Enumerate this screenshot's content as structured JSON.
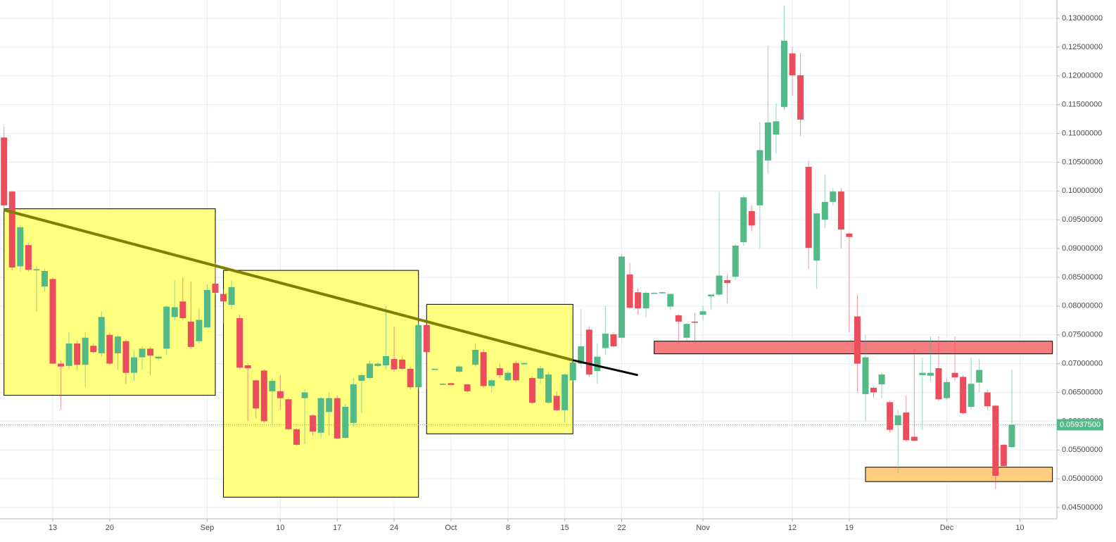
{
  "chart_data": {
    "type": "candlestick",
    "up_color": "#53b987",
    "down_color": "#eb4d5c",
    "x": [
      "Aug 7",
      "Aug 8",
      "Aug 9",
      "Aug 10",
      "Aug 11",
      "Aug 12",
      "Aug 13",
      "Aug 14",
      "Aug 15",
      "Aug 16",
      "Aug 17",
      "Aug 18",
      "Aug 19",
      "Aug 20",
      "Aug 21",
      "Aug 22",
      "Aug 23",
      "Aug 24",
      "Aug 25",
      "Aug 26",
      "Aug 27",
      "Aug 28",
      "Aug 29",
      "Aug 30",
      "Aug 31",
      "Sep 1",
      "Sep 2",
      "Sep 3",
      "Sep 4",
      "Sep 5",
      "Sep 6",
      "Sep 7",
      "Sep 8",
      "Sep 9",
      "Sep 10",
      "Sep 11",
      "Sep 12",
      "Sep 13",
      "Sep 14",
      "Sep 15",
      "Sep 16",
      "Sep 17",
      "Sep 18",
      "Sep 19",
      "Sep 20",
      "Sep 21",
      "Sep 22",
      "Sep 23",
      "Sep 24",
      "Sep 25",
      "Sep 26",
      "Sep 27",
      "Sep 28",
      "Sep 29",
      "Sep 30",
      "Oct 1",
      "Oct 2",
      "Oct 3",
      "Oct 4",
      "Oct 5",
      "Oct 6",
      "Oct 7",
      "Oct 8",
      "Oct 9",
      "Oct 10",
      "Oct 11",
      "Oct 12",
      "Oct 13",
      "Oct 14",
      "Oct 15",
      "Oct 16",
      "Oct 17",
      "Oct 18",
      "Oct 19",
      "Oct 20",
      "Oct 21",
      "Oct 22",
      "Oct 23",
      "Oct 24",
      "Oct 25",
      "Oct 26",
      "Oct 27",
      "Oct 28",
      "Oct 29",
      "Oct 30",
      "Oct 31",
      "Nov 1",
      "Nov 2",
      "Nov 3",
      "Nov 4",
      "Nov 5",
      "Nov 6",
      "Nov 7",
      "Nov 8",
      "Nov 9",
      "Nov 10",
      "Nov 11",
      "Nov 12",
      "Nov 13",
      "Nov 14",
      "Nov 15",
      "Nov 16",
      "Nov 17",
      "Nov 18",
      "Nov 19",
      "Nov 20",
      "Nov 21",
      "Nov 22",
      "Nov 23",
      "Nov 24",
      "Nov 25",
      "Nov 26",
      "Nov 27",
      "Nov 28",
      "Nov 29",
      "Nov 30",
      "Dec 1",
      "Dec 2",
      "Dec 3",
      "Dec 4",
      "Dec 5",
      "Dec 6",
      "Dec 7",
      "Dec 8",
      "Dec 9"
    ],
    "open": [
      0.1093,
      0.0999,
      0.0869,
      0.0906,
      0.0862,
      0.0834,
      0.0847,
      0.07,
      0.0696,
      0.0735,
      0.0698,
      0.0731,
      0.0718,
      0.075,
      0.0718,
      0.0739,
      0.0684,
      0.0711,
      0.0726,
      0.0709,
      0.0726,
      0.0781,
      0.0808,
      0.0773,
      0.0739,
      0.0763,
      0.0839,
      0.0821,
      0.0802,
      0.0779,
      0.0697,
      0.0671,
      0.0688,
      0.0652,
      0.0652,
      0.0638,
      0.0586,
      0.064,
      0.061,
      0.058,
      0.0616,
      0.064,
      0.0571,
      0.0597,
      0.067,
      0.0675,
      0.0696,
      0.0697,
      0.0708,
      0.0707,
      0.0691,
      0.0659,
      0.0767,
      0.069,
      0.0664,
      0.0666,
      0.0686,
      0.0664,
      0.0698,
      0.072,
      0.0661,
      0.0692,
      0.0671,
      0.0701,
      0.0699,
      0.0675,
      0.0674,
      0.0632,
      0.0644,
      0.0619,
      0.0671,
      0.07,
      0.0759,
      0.0687,
      0.0727,
      0.0751,
      0.0745,
      0.0855,
      0.0824,
      0.0796,
      0.0822,
      0.0823,
      0.0799,
      0.0784,
      0.0745,
      0.0773,
      0.0785,
      0.0817,
      0.082,
      0.0845,
      0.0851,
      0.0911,
      0.0965,
      0.0975,
      0.1053,
      0.1098,
      0.1146,
      0.1239,
      0.1201,
      0.1042,
      0.0879,
      0.095,
      0.0981,
      0.0999,
      0.0926,
      0.0782,
      0.0647,
      0.0658,
      0.0664,
      0.0633,
      0.0593,
      0.0615,
      0.0573,
      0.068,
      0.0679,
      0.0692,
      0.064,
      0.0684,
      0.0677,
      0.0625,
      0.0667,
      0.065,
      0.0627,
      0.0559,
      0.0555
    ],
    "high": [
      0.1112,
      0.1,
      0.094,
      0.091,
      0.087,
      0.0865,
      0.085,
      0.0705,
      0.0755,
      0.074,
      0.0755,
      0.0735,
      0.079,
      0.0755,
      0.075,
      0.0742,
      0.0722,
      0.073,
      0.073,
      0.0713,
      0.0801,
      0.0845,
      0.085,
      0.0843,
      0.0795,
      0.0838,
      0.0875,
      0.083,
      0.0845,
      0.0785,
      0.07,
      0.0672,
      0.069,
      0.0675,
      0.068,
      0.0641,
      0.0588,
      0.0655,
      0.0612,
      0.0642,
      0.065,
      0.0645,
      0.063,
      0.0675,
      0.0683,
      0.0705,
      0.0702,
      0.08,
      0.0765,
      0.0712,
      0.0695,
      0.0772,
      0.0775,
      0.0692,
      0.0666,
      0.0667,
      0.0697,
      0.0665,
      0.0735,
      0.0725,
      0.0673,
      0.07,
      0.0688,
      0.0705,
      0.0702,
      0.0678,
      0.0695,
      0.0685,
      0.0652,
      0.0683,
      0.0705,
      0.0795,
      0.0765,
      0.0735,
      0.08,
      0.0755,
      0.089,
      0.0875,
      0.083,
      0.0825,
      0.0824,
      0.0825,
      0.0822,
      0.0786,
      0.077,
      0.0788,
      0.08,
      0.082,
      0.0998,
      0.0855,
      0.0908,
      0.0992,
      0.0975,
      0.112,
      0.1252,
      0.1152,
      0.1322,
      0.125,
      0.124,
      0.1052,
      0.0962,
      0.1028,
      0.1005,
      0.1005,
      0.0928,
      0.082,
      0.075,
      0.066,
      0.0685,
      0.0636,
      0.062,
      0.0645,
      0.0725,
      0.071,
      0.0747,
      0.0747,
      0.0672,
      0.0748,
      0.068,
      0.071,
      0.0708,
      0.0655,
      0.0628,
      0.056,
      0.069
    ],
    "low": [
      0.0965,
      0.0862,
      0.086,
      0.086,
      0.079,
      0.0825,
      0.07,
      0.062,
      0.069,
      0.069,
      0.066,
      0.0718,
      0.0712,
      0.0698,
      0.069,
      0.0665,
      0.067,
      0.069,
      0.068,
      0.0705,
      0.0715,
      0.0775,
      0.0775,
      0.0725,
      0.0735,
      0.0762,
      0.082,
      0.077,
      0.0795,
      0.069,
      0.06,
      0.0605,
      0.0597,
      0.0595,
      0.062,
      0.0585,
      0.0558,
      0.056,
      0.0575,
      0.057,
      0.0575,
      0.057,
      0.057,
      0.059,
      0.0615,
      0.0673,
      0.0694,
      0.069,
      0.0686,
      0.0688,
      0.0655,
      0.0655,
      0.0656,
      0.0689,
      0.0663,
      0.0662,
      0.0684,
      0.065,
      0.0695,
      0.0658,
      0.065,
      0.0675,
      0.0669,
      0.0668,
      0.0698,
      0.063,
      0.0665,
      0.063,
      0.0618,
      0.0598,
      0.0668,
      0.0693,
      0.0677,
      0.0665,
      0.0715,
      0.0728,
      0.0743,
      0.0795,
      0.0785,
      0.078,
      0.0821,
      0.0822,
      0.0793,
      0.0735,
      0.074,
      0.0735,
      0.0775,
      0.0793,
      0.0817,
      0.0805,
      0.0845,
      0.0905,
      0.093,
      0.09,
      0.103,
      0.1065,
      0.114,
      0.1165,
      0.1095,
      0.0865,
      0.083,
      0.0935,
      0.0975,
      0.09,
      0.0755,
      0.065,
      0.06,
      0.064,
      0.064,
      0.058,
      0.051,
      0.0565,
      0.0565,
      0.0585,
      0.067,
      0.0635,
      0.0638,
      0.067,
      0.0612,
      0.062,
      0.065,
      0.062,
      0.0482,
      0.052,
      0.0553
    ],
    "close": [
      0.0975,
      0.0867,
      0.0937,
      0.0863,
      0.0864,
      0.0861,
      0.07,
      0.0695,
      0.0735,
      0.0698,
      0.0745,
      0.072,
      0.0781,
      0.07,
      0.0747,
      0.0684,
      0.0711,
      0.0726,
      0.0714,
      0.0712,
      0.0799,
      0.0798,
      0.0779,
      0.0729,
      0.0776,
      0.0828,
      0.0823,
      0.0808,
      0.0833,
      0.0693,
      0.0692,
      0.0622,
      0.06,
      0.067,
      0.064,
      0.0586,
      0.0559,
      0.065,
      0.0582,
      0.064,
      0.064,
      0.057,
      0.0625,
      0.0664,
      0.068,
      0.07,
      0.07,
      0.0713,
      0.069,
      0.0691,
      0.0659,
      0.0767,
      0.072,
      0.0691,
      0.0665,
      0.0663,
      0.0695,
      0.0652,
      0.0724,
      0.0661,
      0.0671,
      0.068,
      0.0684,
      0.0671,
      0.0701,
      0.0632,
      0.0692,
      0.0681,
      0.0619,
      0.0681,
      0.0702,
      0.073,
      0.0681,
      0.0712,
      0.0752,
      0.073,
      0.0886,
      0.0797,
      0.0796,
      0.0823,
      0.0823,
      0.0824,
      0.0821,
      0.0773,
      0.0769,
      0.0771,
      0.0791,
      0.082,
      0.0853,
      0.084,
      0.0905,
      0.0989,
      0.094,
      0.1071,
      0.1119,
      0.1121,
      0.1261,
      0.1201,
      0.1124,
      0.0901,
      0.0961,
      0.0981,
      0.0999,
      0.0933,
      0.092,
      0.07,
      0.0711,
      0.065,
      0.0681,
      0.0585,
      0.061,
      0.0567,
      0.0566,
      0.0684,
      0.0684,
      0.0638,
      0.0668,
      0.0676,
      0.0614,
      0.0665,
      0.0689,
      0.0626,
      0.0505,
      0.0522,
      0.0594
    ],
    "ylim": [
      0.0435,
      0.1322
    ],
    "yticks": [
      {
        "value": 0.045,
        "label": "0.04500000"
      },
      {
        "value": 0.05,
        "label": "0.05000000"
      },
      {
        "value": 0.055,
        "label": "0.05500000"
      },
      {
        "value": 0.06,
        "label": "0.06000000"
      },
      {
        "value": 0.065,
        "label": "0.06500000"
      },
      {
        "value": 0.07,
        "label": "0.07000000"
      },
      {
        "value": 0.075,
        "label": "0.07500000"
      },
      {
        "value": 0.08,
        "label": "0.08000000"
      },
      {
        "value": 0.085,
        "label": "0.08500000"
      },
      {
        "value": 0.09,
        "label": "0.09000000"
      },
      {
        "value": 0.095,
        "label": "0.09500000"
      },
      {
        "value": 0.1,
        "label": "0.10000000"
      },
      {
        "value": 0.105,
        "label": "0.10500000"
      },
      {
        "value": 0.11,
        "label": "0.11000000"
      },
      {
        "value": 0.115,
        "label": "0.11500000"
      },
      {
        "value": 0.12,
        "label": "0.12000000"
      },
      {
        "value": 0.125,
        "label": "0.12500000"
      },
      {
        "value": 0.13,
        "label": "0.13000000"
      }
    ],
    "xticks": [
      {
        "value": "Aug 13",
        "label": "13"
      },
      {
        "value": "Aug 20",
        "label": "20"
      },
      {
        "value": "Sep 1",
        "label": "Sep"
      },
      {
        "value": "Sep 10",
        "label": "10"
      },
      {
        "value": "Sep 17",
        "label": "17"
      },
      {
        "value": "Sep 24",
        "label": "24"
      },
      {
        "value": "Oct 1",
        "label": "Oct"
      },
      {
        "value": "Oct 8",
        "label": "8"
      },
      {
        "value": "Oct 15",
        "label": "15"
      },
      {
        "value": "Oct 22",
        "label": "22"
      },
      {
        "value": "Nov 1",
        "label": "Nov"
      },
      {
        "value": "Nov 12",
        "label": "12"
      },
      {
        "value": "Nov 19",
        "label": "19"
      },
      {
        "value": "Dec 1",
        "label": "Dec"
      },
      {
        "value": "Dec 10",
        "label": "10"
      }
    ],
    "grid": true,
    "last_price": {
      "value": 0.059375,
      "label": "0.05937500",
      "color": "#53b987"
    },
    "rectangles": [
      {
        "x0": "Aug 7",
        "x1": "Sep 2",
        "y0": 0.0969,
        "y1": 0.0645,
        "color": "#ffff80"
      },
      {
        "x0": "Sep 3",
        "x1": "Sep 27",
        "y0": 0.0862,
        "y1": 0.0468,
        "color": "#ffff80"
      },
      {
        "x0": "Sep 28",
        "x1": "Oct 16",
        "y0": 0.0803,
        "y1": 0.0578,
        "color": "#ffff80"
      },
      {
        "x0": "Oct 26",
        "x1": "Dec 14",
        "y0": 0.0739,
        "y1": 0.0717,
        "color": "#f77c80"
      },
      {
        "x0": "Nov 21",
        "x1": "Dec 14",
        "y0": 0.052,
        "y1": 0.0495,
        "color": "#ffcc80"
      }
    ],
    "lines": [
      {
        "x0": "Aug 7",
        "y0": 0.0967,
        "x1": "Oct 16",
        "y1": 0.0706,
        "color": "#808000",
        "width": 4
      },
      {
        "x0": "Oct 16",
        "y0": 0.0706,
        "x1": "Oct 24",
        "y1": 0.068,
        "color": "#000000",
        "width": 3
      }
    ]
  }
}
